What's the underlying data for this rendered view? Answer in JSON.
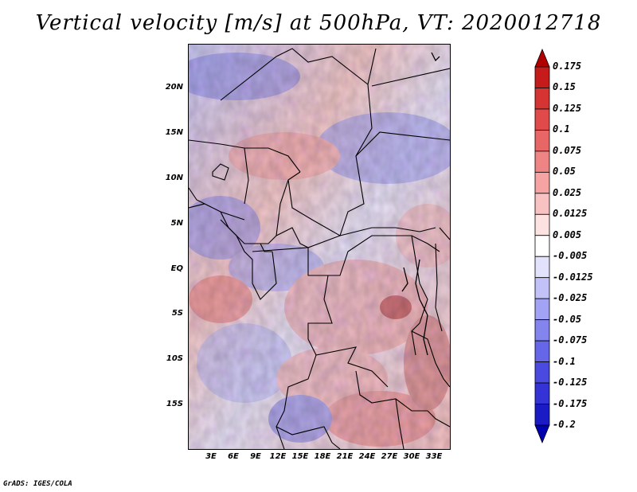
{
  "title": "Vertical velocity [m/s] at 500hPa, VT: 2020012718",
  "credit": "GrADS: IGES/COLA",
  "lat_labels": [
    "20N",
    "15N",
    "10N",
    "5N",
    "EQ",
    "5S",
    "10S",
    "15S"
  ],
  "lon_labels": [
    "3E",
    "6E",
    "9E",
    "12E",
    "15E",
    "18E",
    "21E",
    "24E",
    "27E",
    "30E",
    "33E"
  ],
  "colorbar": {
    "labels": [
      "0.175",
      "0.15",
      "0.125",
      "0.1",
      "0.075",
      "0.05",
      "0.025",
      "0.0125",
      "0.005",
      "-0.005",
      "-0.0125",
      "-0.025",
      "-0.05",
      "-0.075",
      "-0.1",
      "-0.125",
      "-0.175",
      "-0.2"
    ],
    "colors": [
      "#b00000",
      "#c61b1b",
      "#d63333",
      "#e04a4a",
      "#e86666",
      "#ef8484",
      "#f5a3a3",
      "#f9c2c2",
      "#fde2e2",
      "#ffffff",
      "#e2e2fd",
      "#c2c2f9",
      "#a3a3f5",
      "#8484ef",
      "#6666e8",
      "#4a4ae0",
      "#3333d6",
      "#1b1bc6",
      "#0000b0"
    ]
  }
}
